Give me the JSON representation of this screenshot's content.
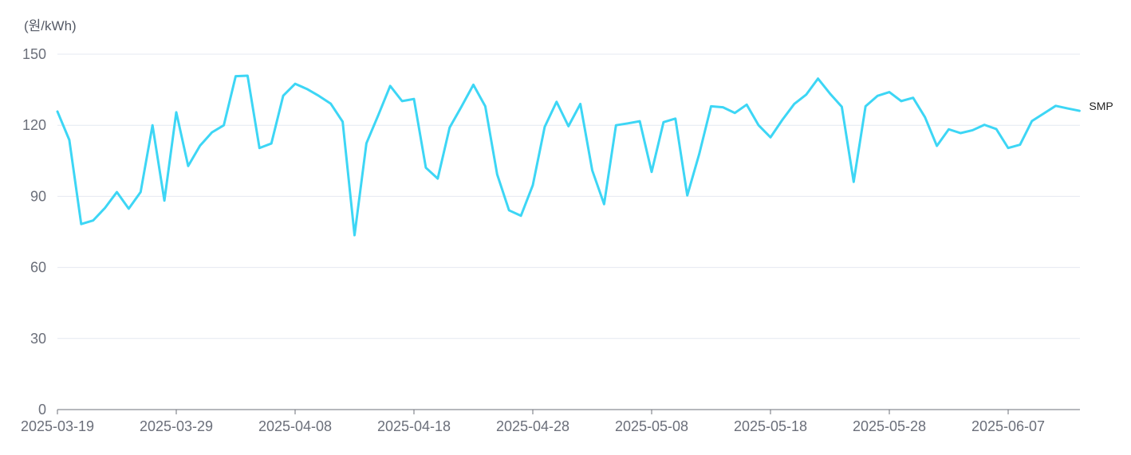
{
  "chart_data": {
    "type": "line",
    "unit_label": "(원/kWh)",
    "ylim": [
      0,
      150
    ],
    "y_ticks": [
      0,
      30,
      60,
      90,
      120,
      150
    ],
    "x_tick_labels": [
      "2025-03-19",
      "2025-03-29",
      "2025-04-08",
      "2025-04-18",
      "2025-04-28",
      "2025-05-08",
      "2025-05-18",
      "2025-05-28",
      "2025-06-07"
    ],
    "grid": true,
    "series_color": "#3dd6f5",
    "x": [
      "2025-03-19",
      "2025-03-20",
      "2025-03-21",
      "2025-03-22",
      "2025-03-23",
      "2025-03-24",
      "2025-03-25",
      "2025-03-26",
      "2025-03-27",
      "2025-03-28",
      "2025-03-29",
      "2025-03-30",
      "2025-03-31",
      "2025-04-01",
      "2025-04-02",
      "2025-04-03",
      "2025-04-04",
      "2025-04-05",
      "2025-04-06",
      "2025-04-07",
      "2025-04-08",
      "2025-04-09",
      "2025-04-10",
      "2025-04-11",
      "2025-04-12",
      "2025-04-13",
      "2025-04-14",
      "2025-04-15",
      "2025-04-16",
      "2025-04-17",
      "2025-04-18",
      "2025-04-19",
      "2025-04-20",
      "2025-04-21",
      "2025-04-22",
      "2025-04-23",
      "2025-04-24",
      "2025-04-25",
      "2025-04-26",
      "2025-04-27",
      "2025-04-28",
      "2025-04-29",
      "2025-04-30",
      "2025-05-01",
      "2025-05-02",
      "2025-05-03",
      "2025-05-04",
      "2025-05-05",
      "2025-05-06",
      "2025-05-07",
      "2025-05-08",
      "2025-05-09",
      "2025-05-10",
      "2025-05-11",
      "2025-05-12",
      "2025-05-13",
      "2025-05-14",
      "2025-05-15",
      "2025-05-16",
      "2025-05-17",
      "2025-05-18",
      "2025-05-19",
      "2025-05-20",
      "2025-05-21",
      "2025-05-22",
      "2025-05-23",
      "2025-05-24",
      "2025-05-25",
      "2025-05-26",
      "2025-05-27",
      "2025-05-28",
      "2025-05-29",
      "2025-05-30",
      "2025-05-31",
      "2025-06-01",
      "2025-06-02",
      "2025-06-03",
      "2025-06-04",
      "2025-06-05",
      "2025-06-06",
      "2025-06-07",
      "2025-06-08",
      "2025-06-09",
      "2025-06-10",
      "2025-06-11",
      "2025-06-12",
      "2025-06-13"
    ],
    "series": [
      {
        "name": "SMP",
        "values": [
          125.8,
          113.8,
          78.3,
          79.8,
          85.1,
          91.8,
          84.8,
          91.8,
          120.0,
          88.2,
          125.5,
          102.8,
          111.4,
          117.0,
          120.0,
          140.7,
          140.9,
          110.4,
          112.3,
          132.5,
          137.5,
          135.3,
          132.4,
          129.1,
          121.5,
          73.6,
          112.4,
          124.3,
          136.6,
          130.2,
          131.1,
          102.1,
          97.5,
          119.0,
          127.9,
          137.1,
          128.0,
          99.3,
          84.1,
          81.8,
          94.7,
          119.3,
          129.9,
          119.6,
          129.0,
          101.0,
          86.7,
          120.0,
          120.8,
          121.7,
          100.3,
          121.3,
          122.8,
          90.4,
          107.8,
          128.0,
          127.6,
          125.2,
          128.7,
          120.0,
          114.9,
          122.3,
          129.0,
          132.9,
          139.7,
          133.4,
          127.8,
          96.1,
          128.0,
          132.4,
          134.0,
          130.2,
          131.6,
          123.4,
          111.3,
          118.3,
          116.7,
          117.9,
          120.2,
          118.4,
          110.4,
          111.8,
          121.8,
          125.0,
          128.2,
          127.1,
          126.1
        ]
      }
    ]
  }
}
